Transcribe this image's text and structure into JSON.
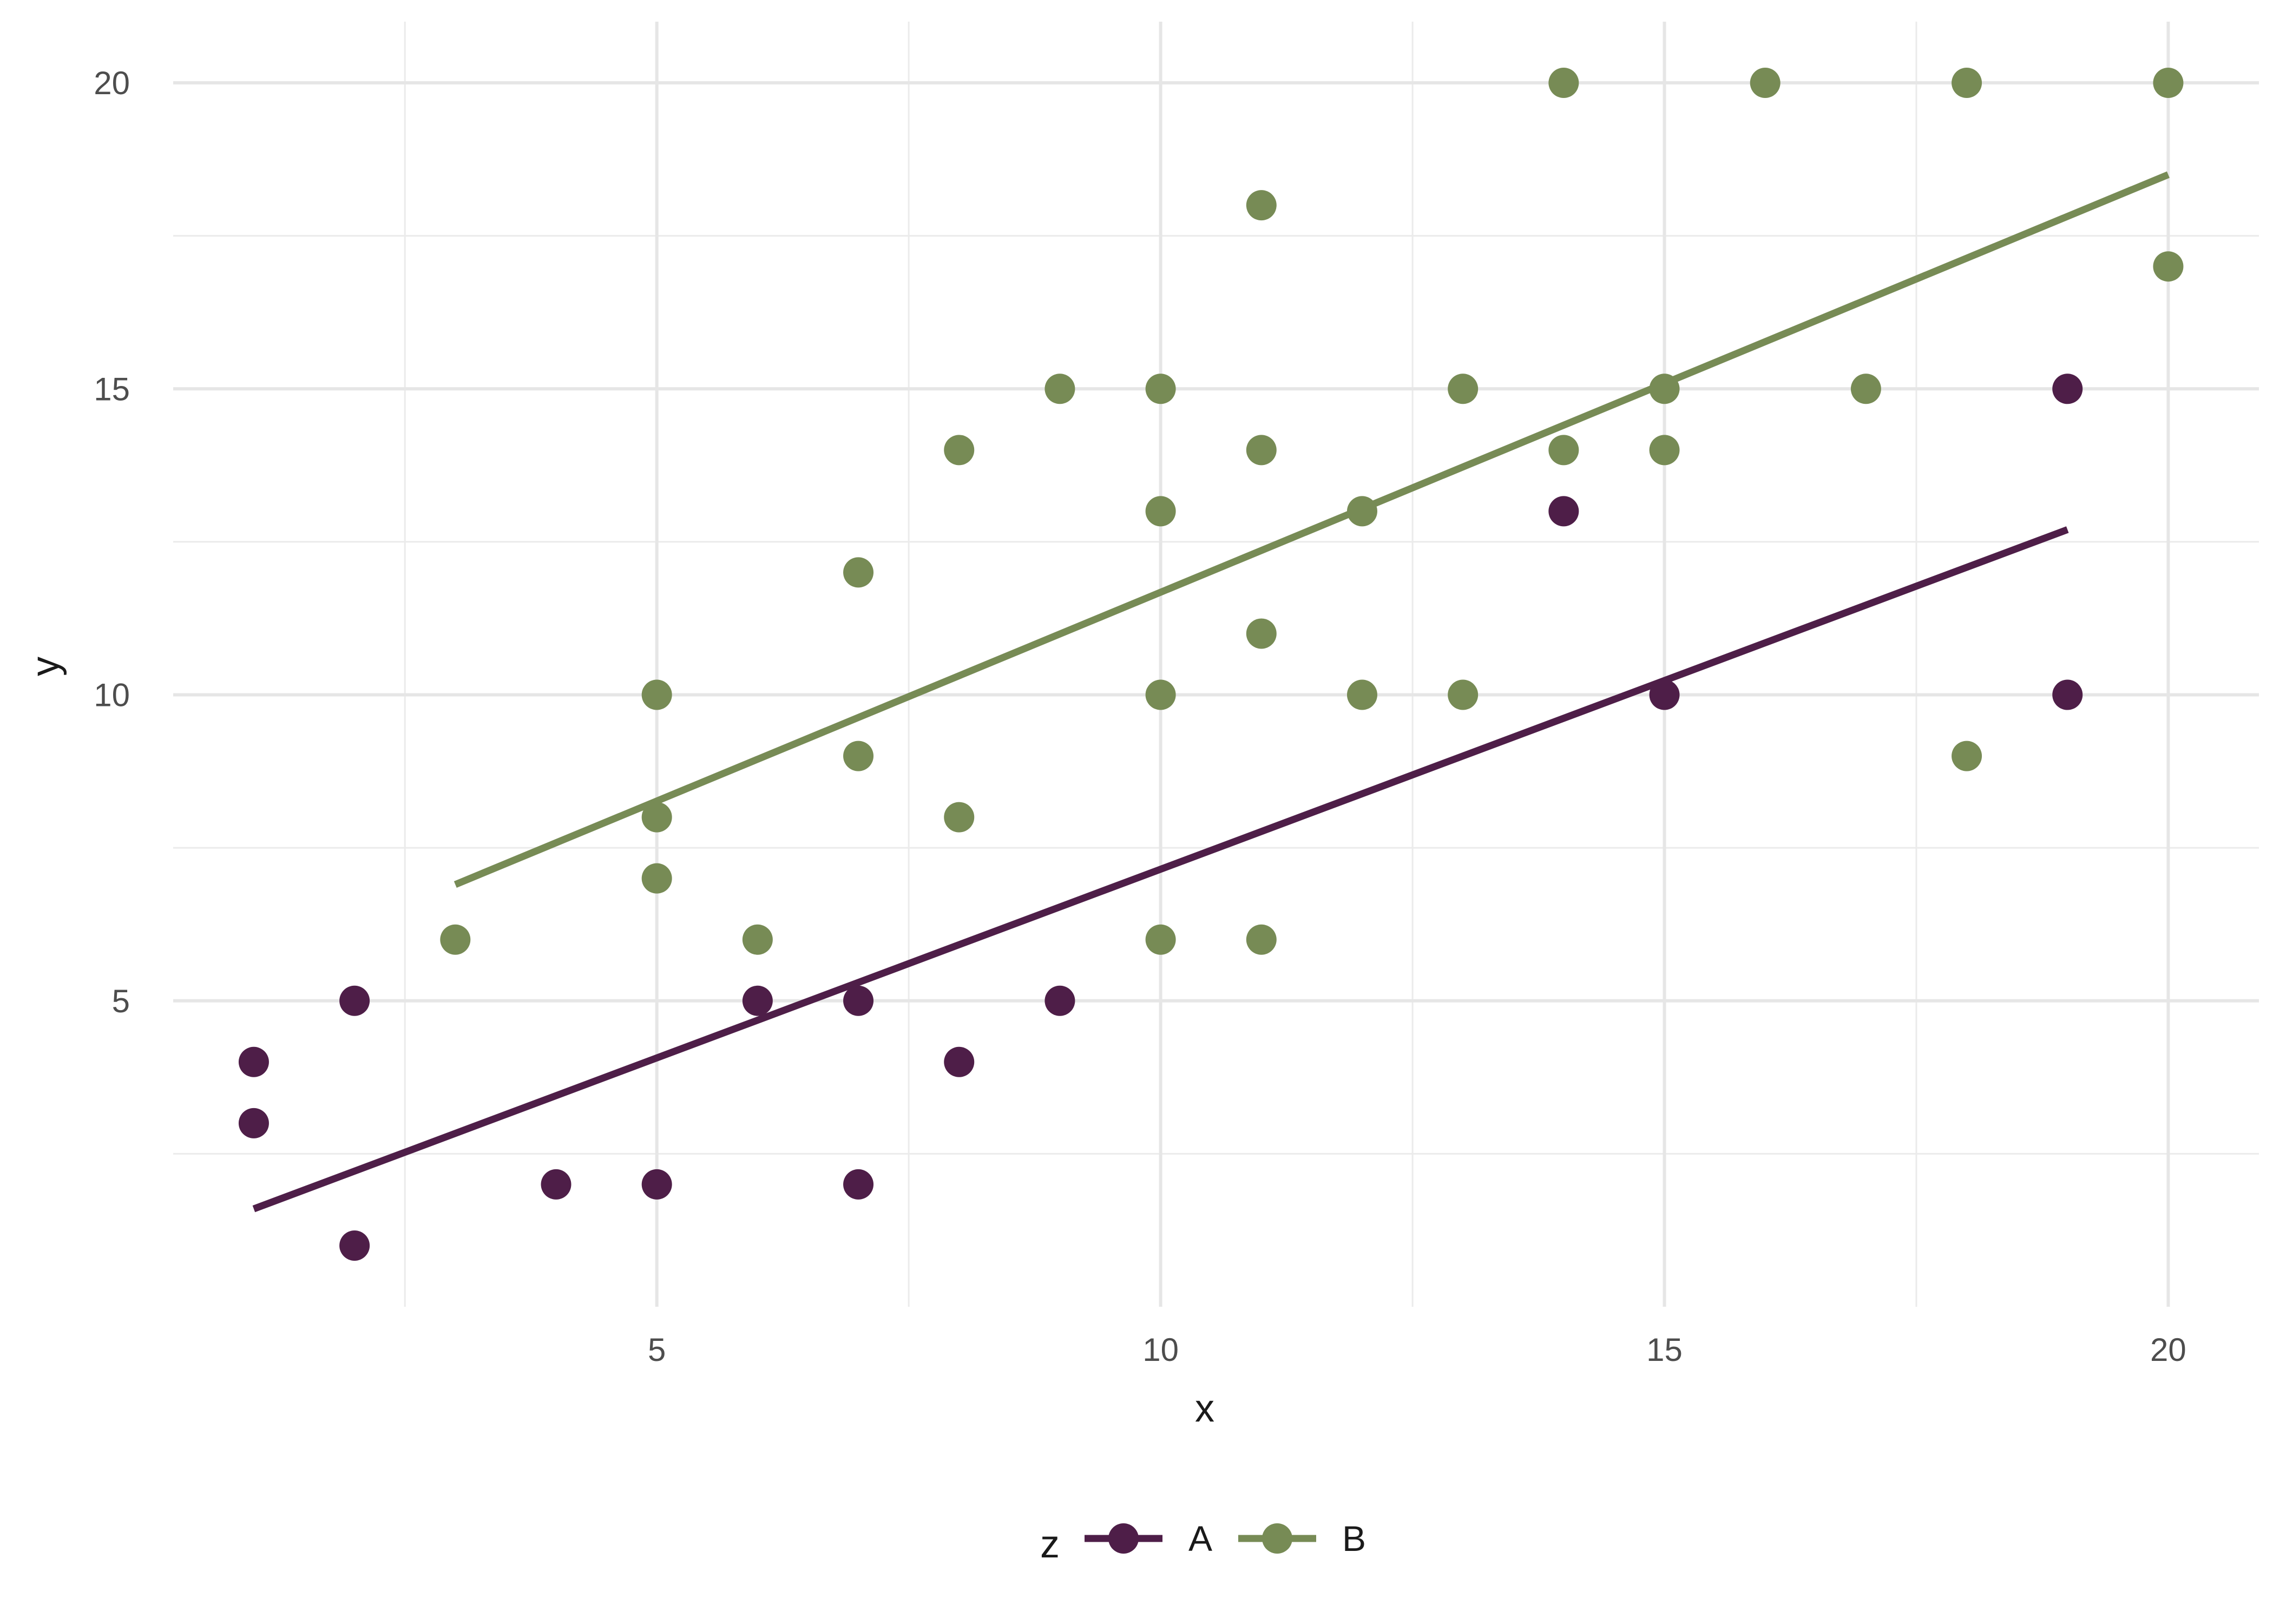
{
  "chart_data": {
    "type": "scatter",
    "title": "",
    "xlabel": "x",
    "ylabel": "y",
    "xlim": [
      0.2,
      20.9
    ],
    "ylim": [
      0.0,
      21.0
    ],
    "x_ticks": [
      5,
      10,
      15,
      20
    ],
    "y_ticks": [
      5,
      10,
      15,
      20
    ],
    "grid": true,
    "legend": {
      "title": "z",
      "position": "bottom"
    },
    "series": [
      {
        "name": "A",
        "color": "#4e1e48",
        "points": [
          [
            1,
            4
          ],
          [
            1,
            3
          ],
          [
            2,
            5
          ],
          [
            2,
            1
          ],
          [
            4,
            2
          ],
          [
            5,
            2
          ],
          [
            6,
            5
          ],
          [
            7,
            5
          ],
          [
            7,
            2
          ],
          [
            8,
            4
          ],
          [
            9,
            5
          ],
          [
            14,
            13
          ],
          [
            15,
            10
          ],
          [
            19,
            15
          ],
          [
            19,
            10
          ]
        ],
        "trend": {
          "x_start": 1,
          "x_end": 19,
          "y_start": 1.6,
          "y_end": 12.7
        }
      },
      {
        "name": "B",
        "color": "#778b55",
        "points": [
          [
            3,
            6
          ],
          [
            5,
            10
          ],
          [
            5,
            8
          ],
          [
            5,
            7
          ],
          [
            6,
            6
          ],
          [
            7,
            12
          ],
          [
            7,
            9
          ],
          [
            8,
            14
          ],
          [
            8,
            8
          ],
          [
            9,
            15
          ],
          [
            10,
            15
          ],
          [
            10,
            13
          ],
          [
            10,
            10
          ],
          [
            10,
            6
          ],
          [
            11,
            18
          ],
          [
            11,
            14
          ],
          [
            11,
            11
          ],
          [
            11,
            6
          ],
          [
            12,
            13
          ],
          [
            12,
            10
          ],
          [
            13,
            15
          ],
          [
            13,
            10
          ],
          [
            14,
            20
          ],
          [
            14,
            14
          ],
          [
            15,
            15
          ],
          [
            15,
            14
          ],
          [
            16,
            20
          ],
          [
            17,
            15
          ],
          [
            18,
            20
          ],
          [
            18,
            9
          ],
          [
            20,
            20
          ],
          [
            20,
            17
          ]
        ],
        "trend": {
          "x_start": 3,
          "x_end": 20,
          "y_start": 6.9,
          "y_end": 18.5
        }
      }
    ]
  }
}
